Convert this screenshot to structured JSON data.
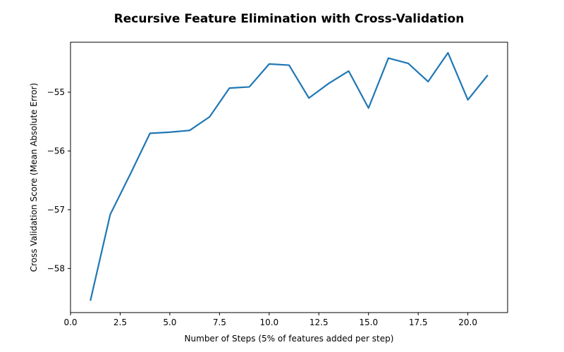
{
  "chart_data": {
    "type": "line",
    "title": "Recursive Feature Elimination with Cross-Validation",
    "xlabel": "Number of Steps (5% of features added per step)",
    "ylabel": "Cross Validation Score (Mean Absolute Error)",
    "xlim": [
      0,
      22.0
    ],
    "ylim": [
      -58.75,
      -54.15
    ],
    "xticks": [
      0.0,
      2.5,
      5.0,
      7.5,
      10.0,
      12.5,
      15.0,
      17.5,
      20.0
    ],
    "xtick_labels": [
      "0.0",
      "2.5",
      "5.0",
      "7.5",
      "10.0",
      "12.5",
      "15.0",
      "17.5",
      "20.0"
    ],
    "yticks": [
      -58,
      -57,
      -56,
      -55
    ],
    "ytick_labels": [
      "−58",
      "−57",
      "−56",
      "−55"
    ],
    "grid": false,
    "series": [
      {
        "color": "#1f77b4",
        "x": [
          1,
          2,
          3,
          4,
          5,
          6,
          7,
          8,
          9,
          10,
          11,
          12,
          13,
          14,
          15,
          16,
          17,
          18,
          19,
          20,
          21
        ],
        "y": [
          -58.55,
          -57.08,
          -56.4,
          -55.7,
          -55.68,
          -55.65,
          -55.42,
          -54.93,
          -54.91,
          -54.52,
          -54.54,
          -55.1,
          -54.85,
          -54.64,
          -55.27,
          -54.42,
          -54.51,
          -54.82,
          -54.33,
          -55.13,
          -54.71
        ]
      }
    ]
  }
}
